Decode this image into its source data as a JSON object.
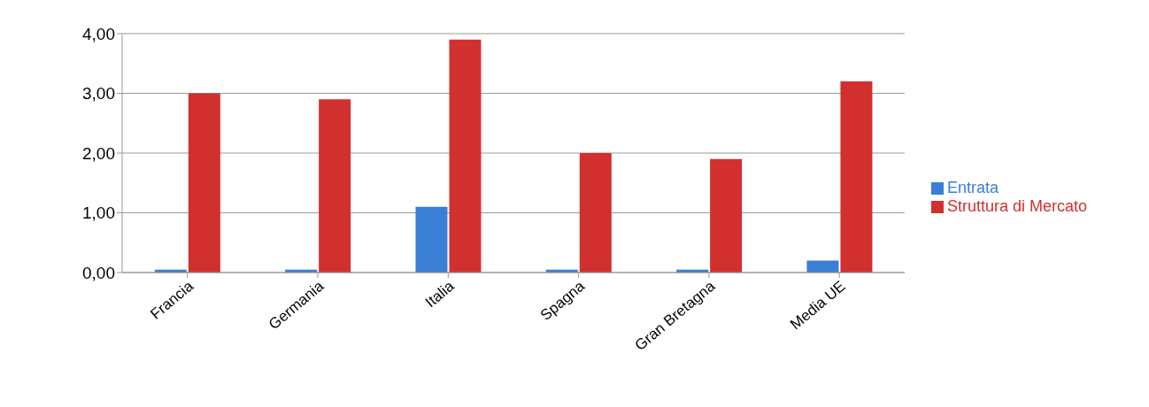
{
  "chart_data": {
    "type": "bar",
    "categories": [
      "Francia",
      "Germania",
      "Italia",
      "Spagna",
      "Gran Bretagna",
      "Media UE"
    ],
    "series": [
      {
        "name": "Entrata",
        "color": "#3a7fd5",
        "values": [
          0.05,
          0.05,
          1.1,
          0.05,
          0.05,
          0.2
        ]
      },
      {
        "name": "Struttura di Mercato",
        "color": "#d22f2f",
        "values": [
          3.0,
          2.9,
          3.9,
          2.0,
          1.9,
          3.2
        ]
      }
    ],
    "ylim": [
      0,
      4
    ],
    "yticks": [
      {
        "value": 0,
        "label": "0,00"
      },
      {
        "value": 1,
        "label": "1,00"
      },
      {
        "value": 2,
        "label": "2,00"
      },
      {
        "value": 3,
        "label": "3,00"
      },
      {
        "value": 4,
        "label": "4,00"
      }
    ],
    "grid": "y",
    "legend": "right"
  }
}
